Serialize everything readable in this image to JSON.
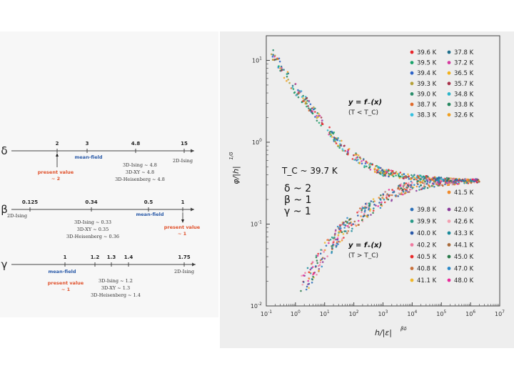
{
  "exponent_panel": {
    "rows": [
      {
        "symbol": "δ",
        "ticks": [
          {
            "label": "2",
            "value": 2
          },
          {
            "label": "3",
            "value": 3
          },
          {
            "label": "4.8",
            "value": 4.8
          },
          {
            "label": "15",
            "value": 15
          }
        ],
        "mean_field_label": "mean-field",
        "present_value_lines": [
          "present value",
          "~ 2"
        ],
        "model_list": [
          "3D-Ising ~ 4.8",
          "3D-XY ~ 4.8",
          "3D-Heisenberg ~ 4.8"
        ],
        "ising2d_label": "2D-Ising"
      },
      {
        "symbol": "β",
        "ticks": [
          {
            "label": "0.125",
            "value": 0.125
          },
          {
            "label": "0.34",
            "value": 0.34
          },
          {
            "label": "0.5",
            "value": 0.5
          },
          {
            "label": "1",
            "value": 1
          }
        ],
        "mean_field_label": "mean-field",
        "present_value_lines": [
          "present value",
          "~ 1"
        ],
        "model_list": [
          "3D-Ising ~ 0.33",
          "3D-XY ~ 0.35",
          "3D-Heisenberg ~ 0.36"
        ],
        "ising2d_label": "2D-Ising"
      },
      {
        "symbol": "γ",
        "ticks": [
          {
            "label": "1",
            "value": 1
          },
          {
            "label": "1.2",
            "value": 1.2
          },
          {
            "label": "1.3",
            "value": 1.3
          },
          {
            "label": "1.4",
            "value": 1.4
          },
          {
            "label": "1.75",
            "value": 1.75
          }
        ],
        "mean_field_label": "mean-field",
        "present_value_lines": [
          "present value",
          "~ 1"
        ],
        "model_list": [
          "3D-Ising ~ 1.2",
          "3D-XY ~ 1.3",
          "3D-Heisenberg ~ 1.4"
        ],
        "ising2d_label": "2D-Ising"
      }
    ]
  },
  "chart_data": {
    "type": "scatter",
    "x_scale": "log",
    "y_scale": "log",
    "xlim": [
      0.1,
      10000000
    ],
    "ylim": [
      0.01,
      20
    ],
    "xlabel": "h/|ε|^{βδ}",
    "ylabel": "φ/|h|^{1/δ}",
    "x_ticks": [
      "10^-1",
      "10^0",
      "10^1",
      "10^2",
      "10^3",
      "10^4",
      "10^5",
      "10^6",
      "10^7"
    ],
    "y_ticks": [
      "10^-2",
      "10^-1",
      "10^0",
      "10^1"
    ],
    "annotations": {
      "upper_branch": "y = f₋(x)",
      "upper_condition": "(T < T_C)",
      "lower_branch": "y = f₊(x)",
      "lower_condition": "(T > T_C)",
      "tc": "T_C ~ 39.7 K",
      "exponents": [
        "δ ~ 2",
        "β ~ 1",
        "γ ~ 1"
      ]
    },
    "upper_legend": [
      {
        "name": "39.6 K",
        "color": "#e8262b"
      },
      {
        "name": "37.8 K",
        "color": "#1f6f8b"
      },
      {
        "name": "39.5 K",
        "color": "#1aa36b"
      },
      {
        "name": "37.2 K",
        "color": "#d63aa0"
      },
      {
        "name": "39.4 K",
        "color": "#2d63c8"
      },
      {
        "name": "36.5 K",
        "color": "#f2b21c"
      },
      {
        "name": "39.3 K",
        "color": "#b5a13a"
      },
      {
        "name": "35.7 K",
        "color": "#a8324a"
      },
      {
        "name": "39.0 K",
        "color": "#2a8c6a"
      },
      {
        "name": "34.8 K",
        "color": "#2bb5c9"
      },
      {
        "name": "38.7 K",
        "color": "#e06a2b"
      },
      {
        "name": "33.8 K",
        "color": "#25875f"
      },
      {
        "name": "38.3 K",
        "color": "#35c1e0"
      },
      {
        "name": "32.6 K",
        "color": "#f0a020"
      }
    ],
    "lower_legend": [
      {
        "name": "41.5 K",
        "color": "#f08a2b"
      },
      {
        "name": "39.8 K",
        "color": "#2a6fb8"
      },
      {
        "name": "42.0 K",
        "color": "#8a3a9a"
      },
      {
        "name": "39.9 K",
        "color": "#2a9a88"
      },
      {
        "name": "42.6 K",
        "color": "#f2a0b0"
      },
      {
        "name": "40.0 K",
        "color": "#2a58a8"
      },
      {
        "name": "43.3 K",
        "color": "#1a8a9a"
      },
      {
        "name": "40.2 K",
        "color": "#f07aa0"
      },
      {
        "name": "44.1 K",
        "color": "#a86a3a"
      },
      {
        "name": "40.5 K",
        "color": "#e82a2a"
      },
      {
        "name": "45.0 K",
        "color": "#2a7a4a"
      },
      {
        "name": "40.8 K",
        "color": "#c8703a"
      },
      {
        "name": "47.0 K",
        "color": "#2a88c8"
      },
      {
        "name": "41.1 K",
        "color": "#f0b82a"
      },
      {
        "name": "48.0 K",
        "color": "#e82a9a"
      }
    ],
    "upper_branch_points": [
      {
        "x": 0.15,
        "y": 12
      },
      {
        "x": 0.3,
        "y": 8.5
      },
      {
        "x": 1,
        "y": 4.5
      },
      {
        "x": 3,
        "y": 2.8
      },
      {
        "x": 10,
        "y": 1.6
      },
      {
        "x": 30,
        "y": 1.0
      },
      {
        "x": 100,
        "y": 0.68
      },
      {
        "x": 300,
        "y": 0.52
      },
      {
        "x": 1000,
        "y": 0.43
      },
      {
        "x": 10000,
        "y": 0.375
      },
      {
        "x": 100000,
        "y": 0.35
      },
      {
        "x": 1000000,
        "y": 0.34
      },
      {
        "x": 2000000,
        "y": 0.34
      }
    ],
    "lower_branch_points": [
      {
        "x": 1.5,
        "y": 0.017
      },
      {
        "x": 3,
        "y": 0.023
      },
      {
        "x": 10,
        "y": 0.045
      },
      {
        "x": 30,
        "y": 0.075
      },
      {
        "x": 100,
        "y": 0.11
      },
      {
        "x": 300,
        "y": 0.15
      },
      {
        "x": 1000,
        "y": 0.2
      },
      {
        "x": 3000,
        "y": 0.25
      },
      {
        "x": 10000,
        "y": 0.29
      },
      {
        "x": 100000,
        "y": 0.325
      },
      {
        "x": 1000000,
        "y": 0.335
      },
      {
        "x": 2000000,
        "y": 0.34
      }
    ],
    "grid": false,
    "legend_placement": [
      "top-right",
      "bottom-right"
    ]
  }
}
